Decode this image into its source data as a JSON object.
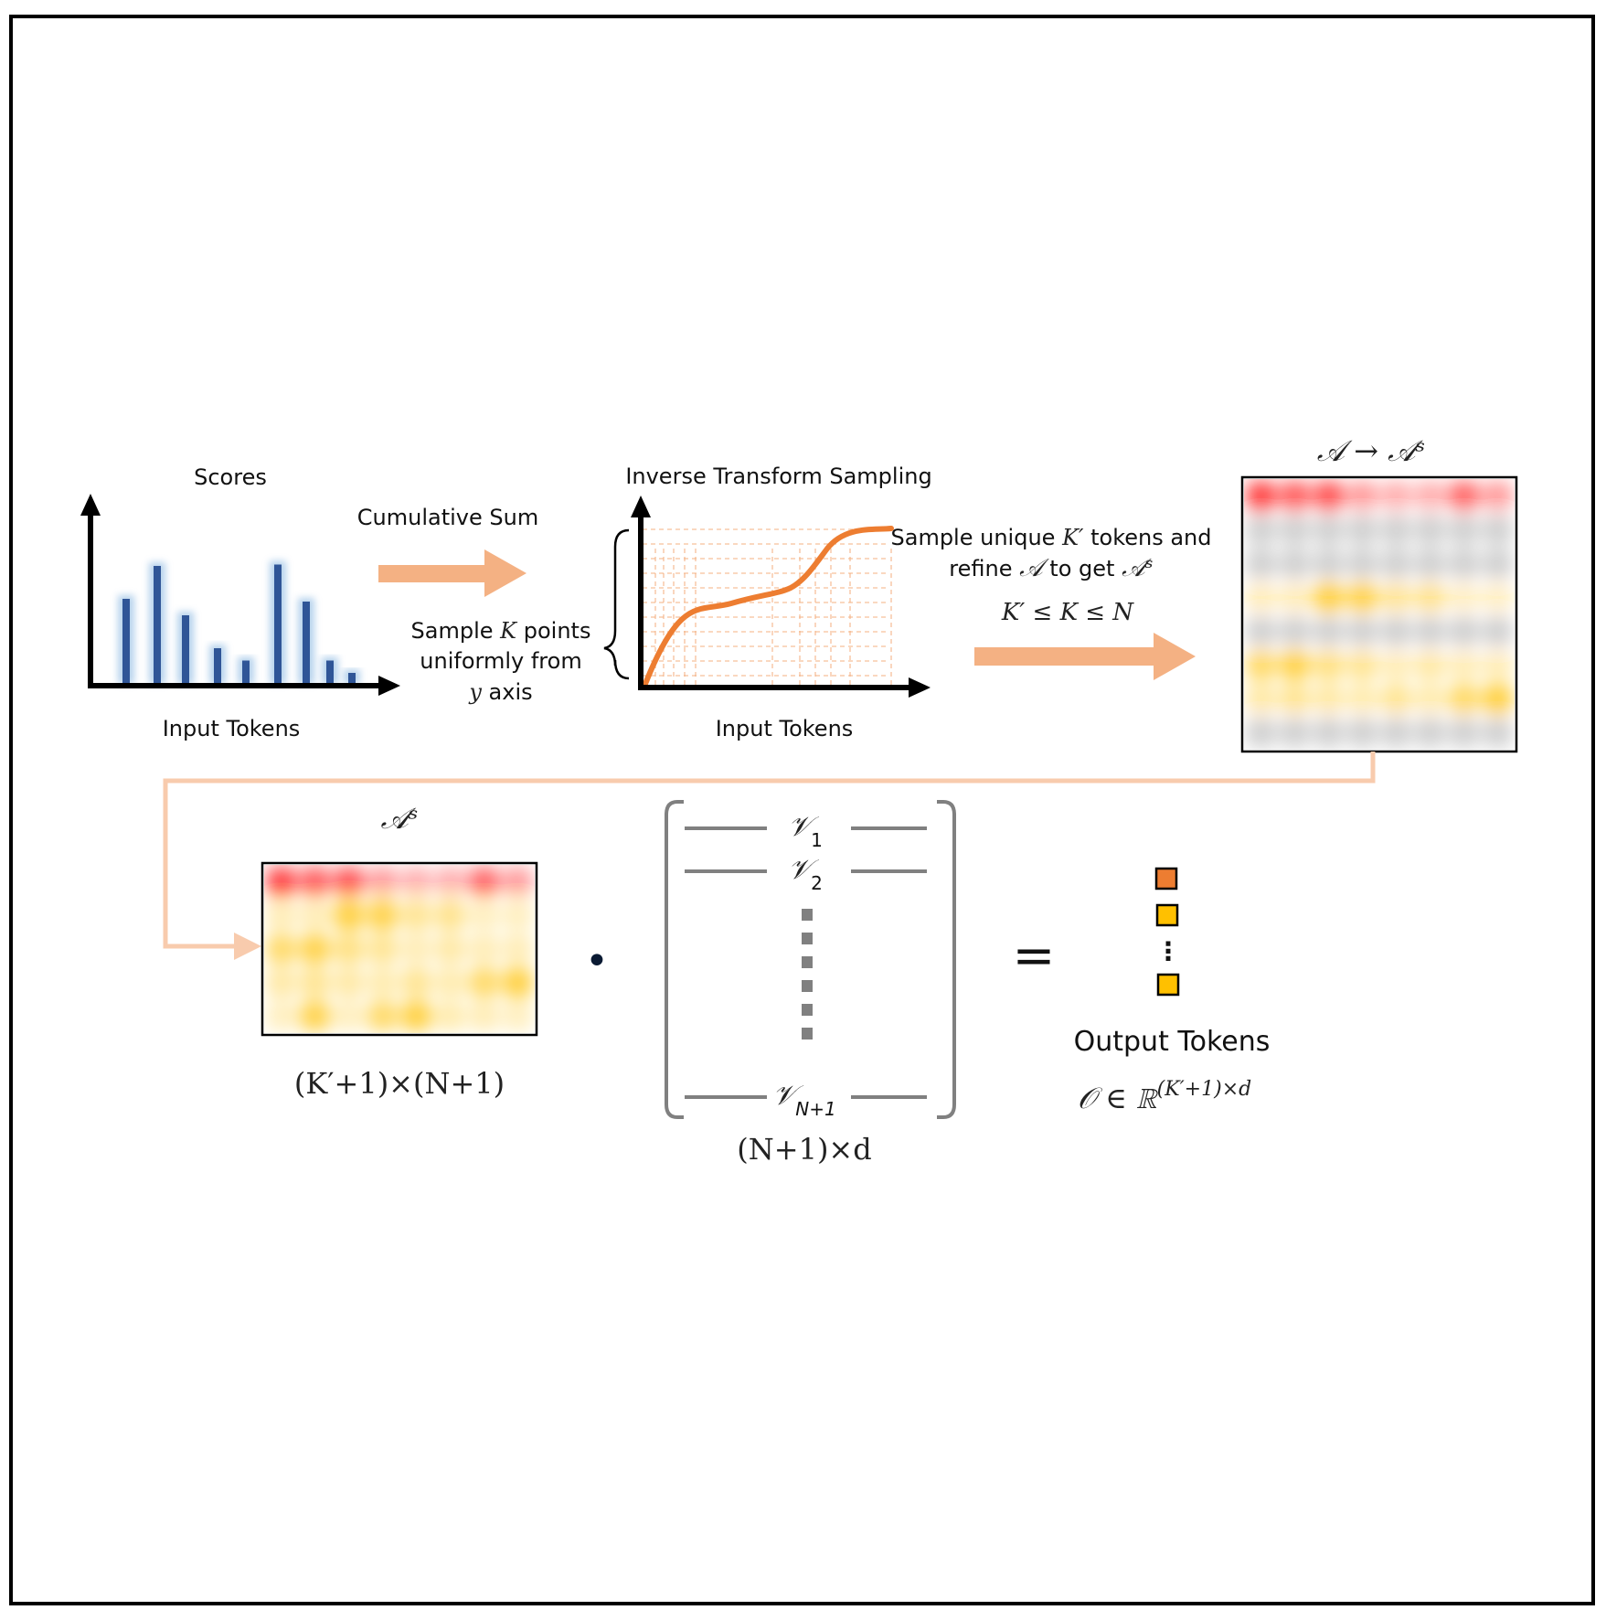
{
  "scores_panel": {
    "title": "Scores",
    "x_label": "Input Tokens",
    "bar_heights": [
      0.62,
      0.86,
      0.5,
      0.26,
      0.17,
      0.87,
      0.6,
      0.17,
      0.08
    ],
    "bar_color": "#2f5597"
  },
  "cumsum_step": {
    "label": "Cumulative Sum"
  },
  "sampling_note": {
    "line1_pre": "Sample",
    "line1_var": "K",
    "line1_post": "points",
    "line2": "uniformly from",
    "line3_var": "y",
    "line3_post": "axis"
  },
  "its_panel": {
    "title": "Inverse Transform Sampling",
    "x_label": "Input Tokens",
    "curve_color": "#ed7d31"
  },
  "select_step": {
    "line1_pre": "Sample unique",
    "line1_var": "K′",
    "line1_post": "tokens and",
    "line2_pre": "refine",
    "line2_var": "𝒜",
    "line2_mid": "to get",
    "line2_var2": "𝒜ˢ",
    "condition": "K′ ≤ K ≤ N"
  },
  "attention_matrix": {
    "title": "𝒜 → 𝒜ˢ",
    "row_tints": [
      "red",
      "gray",
      "gray",
      "yellow",
      "gray",
      "yellow",
      "yellow",
      "gray"
    ],
    "cells": [
      [
        0.9,
        0.75,
        0.8,
        0.4,
        0.3,
        0.3,
        0.7,
        0.4
      ],
      [
        0.5,
        0.5,
        0.5,
        0.5,
        0.5,
        0.5,
        0.5,
        0.5
      ],
      [
        0.5,
        0.5,
        0.5,
        0.5,
        0.5,
        0.5,
        0.5,
        0.5
      ],
      [
        0.25,
        0.25,
        0.9,
        0.85,
        0.45,
        0.5,
        0.2,
        0.2
      ],
      [
        0.5,
        0.5,
        0.5,
        0.5,
        0.5,
        0.5,
        0.5,
        0.5
      ],
      [
        0.7,
        0.85,
        0.55,
        0.45,
        0.25,
        0.35,
        0.25,
        0.25
      ],
      [
        0.35,
        0.45,
        0.35,
        0.3,
        0.45,
        0.3,
        0.7,
        0.9
      ],
      [
        0.5,
        0.5,
        0.5,
        0.5,
        0.5,
        0.5,
        0.5,
        0.5
      ]
    ]
  },
  "sparse_matrix": {
    "title": "𝒜ˢ",
    "dims": "(K′+1)×(N+1)",
    "row_tints": [
      "red",
      "yellow",
      "yellow",
      "yellow",
      "yellow"
    ],
    "cells": [
      [
        0.9,
        0.75,
        0.8,
        0.4,
        0.3,
        0.3,
        0.7,
        0.4
      ],
      [
        0.25,
        0.25,
        0.9,
        0.85,
        0.45,
        0.5,
        0.2,
        0.2
      ],
      [
        0.7,
        0.85,
        0.55,
        0.45,
        0.25,
        0.35,
        0.25,
        0.25
      ],
      [
        0.35,
        0.45,
        0.35,
        0.3,
        0.45,
        0.3,
        0.7,
        0.9
      ],
      [
        0.2,
        0.85,
        0.2,
        0.7,
        0.9,
        0.3,
        0.25,
        0.2
      ]
    ]
  },
  "dot_operator": "•",
  "value_matrix": {
    "rows": [
      {
        "base": "𝒱",
        "sub": "1"
      },
      {
        "base": "𝒱",
        "sub": "2"
      },
      {
        "base": "𝒱",
        "sub": "N+1"
      }
    ],
    "dims": "(N+1)×d"
  },
  "equals_sign": "=",
  "output": {
    "label": "Output Tokens",
    "formula_base": "𝒪 ∈ ℝ",
    "formula_sup": "(K′+1)×d",
    "token_colors": [
      "#ed7d31",
      "#ffc000",
      "#ffc000"
    ],
    "ellipsis": "⋮"
  },
  "colors": {
    "arrow_fill": "#f4b183",
    "connector": "#f8cbad",
    "dashed_guides": "#f4b183",
    "heat_red": "#ff0000",
    "heat_yellow": "#ffc000",
    "heat_gray": "#8c8c8c",
    "matrix_bracket": "#808080"
  }
}
